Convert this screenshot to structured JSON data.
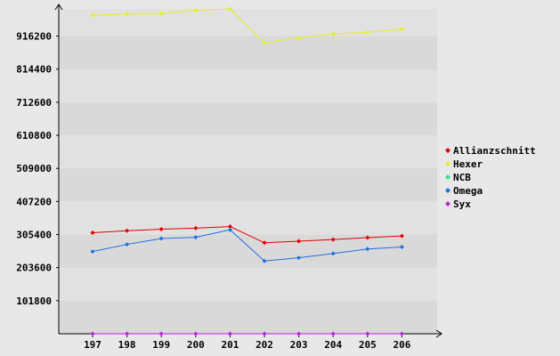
{
  "chart_data": {
    "type": "line",
    "title": "",
    "xlabel": "",
    "ylabel": "",
    "categories": [
      "197",
      "198",
      "199",
      "200",
      "201",
      "202",
      "203",
      "204",
      "205",
      "206"
    ],
    "y_ticks": [
      "101800",
      "203600",
      "305400",
      "407200",
      "509000",
      "610800",
      "712600",
      "814400",
      "916200"
    ],
    "ylim": [
      0,
      1000000
    ],
    "grid": true,
    "legend_position": "right",
    "series": [
      {
        "name": "Allianzschnitt",
        "color": "#e00000",
        "values": [
          311000,
          317000,
          322000,
          325000,
          330000,
          280000,
          285000,
          290000,
          296000,
          301000
        ]
      },
      {
        "name": "Hexer",
        "color": "#e4f020",
        "values": [
          980000,
          985000,
          986000,
          996000,
          1000000,
          896000,
          911000,
          923000,
          928000,
          938000
        ]
      },
      {
        "name": "NCB",
        "color": "#30e090",
        "values": [
          0,
          0,
          0,
          0,
          0,
          0,
          0,
          0,
          0,
          0
        ]
      },
      {
        "name": "Omega",
        "color": "#2070e0",
        "values": [
          253000,
          275000,
          293000,
          297000,
          320000,
          224000,
          234000,
          247000,
          261000,
          267000
        ]
      },
      {
        "name": "Syx",
        "color": "#c020e0",
        "values": [
          0,
          0,
          0,
          0,
          0,
          0,
          0,
          0,
          0,
          0
        ]
      }
    ]
  }
}
